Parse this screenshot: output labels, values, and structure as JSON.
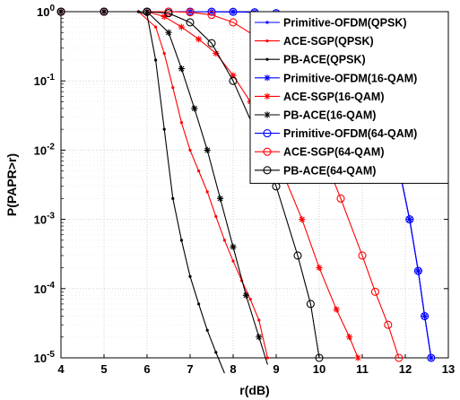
{
  "chart_data": {
    "type": "line",
    "xlabel": "r(dB)",
    "ylabel": "P(PAPR>r)",
    "xlim": [
      4,
      13
    ],
    "ylim": [
      1e-05,
      1
    ],
    "yscale": "log",
    "grid": true,
    "legend_position": "top-right",
    "xticks": [
      "4",
      "5",
      "6",
      "7",
      "8",
      "9",
      "10",
      "11",
      "12",
      "13"
    ],
    "yticks": [
      {
        "base": "10",
        "exp": "0"
      },
      {
        "base": "10",
        "exp": "-1"
      },
      {
        "base": "10",
        "exp": "-2"
      },
      {
        "base": "10",
        "exp": "-3"
      },
      {
        "base": "10",
        "exp": "-4"
      },
      {
        "base": "10",
        "exp": "-5"
      }
    ],
    "series": [
      {
        "name": "Primitive-OFDM(QPSK)",
        "color": "#0000ff",
        "marker": "dot",
        "x": [
          4,
          5,
          6,
          7,
          7.5,
          8,
          8.5,
          9,
          9.5,
          10,
          10.5,
          11,
          11.3,
          11.6,
          11.9,
          12.1,
          12.3,
          12.45,
          12.6
        ],
        "y": [
          1,
          1,
          1,
          1,
          0.999,
          0.995,
          0.98,
          0.95,
          0.85,
          0.65,
          0.4,
          0.17,
          0.07,
          0.018,
          0.004,
          0.001,
          0.00018,
          4e-05,
          1e-05
        ]
      },
      {
        "name": "ACE-SGP(QPSK)",
        "color": "#ff0000",
        "marker": "dot",
        "x": [
          4,
          5,
          5.8,
          6.2,
          6.4,
          6.6,
          6.8,
          7.0,
          7.2,
          7.4,
          7.6,
          7.8,
          8.0,
          8.2,
          8.4,
          8.6,
          8.8
        ],
        "y": [
          1,
          1,
          1,
          0.6,
          0.25,
          0.08,
          0.025,
          0.01,
          0.005,
          0.0025,
          0.0011,
          0.0005,
          0.00025,
          0.00013,
          7e-05,
          3.5e-05,
          1e-05
        ]
      },
      {
        "name": "PB-ACE(QPSK)",
        "color": "#000000",
        "marker": "dot",
        "x": [
          4,
          5,
          5.8,
          6.0,
          6.2,
          6.4,
          6.6,
          6.8,
          7.0,
          7.2,
          7.4,
          7.6,
          7.8
        ],
        "y": [
          1,
          1,
          1,
          0.9,
          0.2,
          0.02,
          0.002,
          0.0005,
          0.00015,
          6e-05,
          2.5e-05,
          1.2e-05,
          6e-06
        ]
      },
      {
        "name": "Primitive-OFDM(16-QAM)",
        "color": "#0000ff",
        "marker": "asterisk",
        "x": [
          4,
          5,
          6,
          7,
          7.5,
          8,
          8.5,
          9,
          9.5,
          10,
          10.5,
          11,
          11.3,
          11.6,
          11.9,
          12.1,
          12.3,
          12.45,
          12.6
        ],
        "y": [
          1,
          1,
          1,
          1,
          0.999,
          0.995,
          0.98,
          0.95,
          0.85,
          0.65,
          0.4,
          0.17,
          0.07,
          0.018,
          0.004,
          0.001,
          0.00018,
          4e-05,
          1e-05
        ]
      },
      {
        "name": "ACE-SGP(16-QAM)",
        "color": "#ff0000",
        "marker": "asterisk",
        "x": [
          4,
          5,
          6,
          6.4,
          6.8,
          7.2,
          7.6,
          8.0,
          8.4,
          8.8,
          9.2,
          9.6,
          10.0,
          10.4,
          10.7,
          10.9
        ],
        "y": [
          1,
          1,
          1,
          0.85,
          0.6,
          0.4,
          0.25,
          0.12,
          0.05,
          0.015,
          0.004,
          0.001,
          0.0002,
          5e-05,
          2e-05,
          1e-05
        ]
      },
      {
        "name": "PB-ACE(16-QAM)",
        "color": "#000000",
        "marker": "asterisk",
        "x": [
          4,
          5,
          6,
          6.5,
          6.8,
          7.1,
          7.4,
          7.7,
          8.0,
          8.3,
          8.6,
          8.8
        ],
        "y": [
          1,
          1,
          1,
          0.5,
          0.15,
          0.04,
          0.01,
          0.002,
          0.0004,
          8e-05,
          2e-05,
          8e-06
        ]
      },
      {
        "name": "Primitive-OFDM(64-QAM)",
        "color": "#0000ff",
        "marker": "circle",
        "x": [
          4,
          5,
          6,
          6.5,
          7,
          7.5,
          8,
          8.5,
          9,
          9.5,
          10,
          10.5,
          11,
          11.3,
          11.6,
          11.9,
          12.1,
          12.3,
          12.45,
          12.6
        ],
        "y": [
          1,
          1,
          1,
          1,
          1,
          0.999,
          0.995,
          0.98,
          0.95,
          0.85,
          0.65,
          0.4,
          0.17,
          0.07,
          0.018,
          0.004,
          0.001,
          0.00018,
          4e-05,
          1e-05
        ]
      },
      {
        "name": "ACE-SGP(64-QAM)",
        "color": "#ff0000",
        "marker": "circle",
        "x": [
          4,
          5,
          6,
          6.5,
          7,
          7.5,
          8,
          8.5,
          9,
          9.5,
          10,
          10.5,
          11,
          11.3,
          11.6,
          11.85
        ],
        "y": [
          1,
          1,
          1,
          1,
          0.98,
          0.9,
          0.7,
          0.45,
          0.2,
          0.06,
          0.012,
          0.002,
          0.0003,
          9e-05,
          3e-05,
          1e-05
        ]
      },
      {
        "name": "PB-ACE(64-QAM)",
        "color": "#000000",
        "marker": "circle",
        "x": [
          4,
          5,
          6,
          6.5,
          7,
          7.5,
          8,
          8.5,
          9,
          9.5,
          9.8,
          10.0
        ],
        "y": [
          1,
          1,
          1,
          0.95,
          0.7,
          0.35,
          0.1,
          0.02,
          0.003,
          0.0003,
          6e-05,
          1e-05
        ]
      }
    ]
  }
}
